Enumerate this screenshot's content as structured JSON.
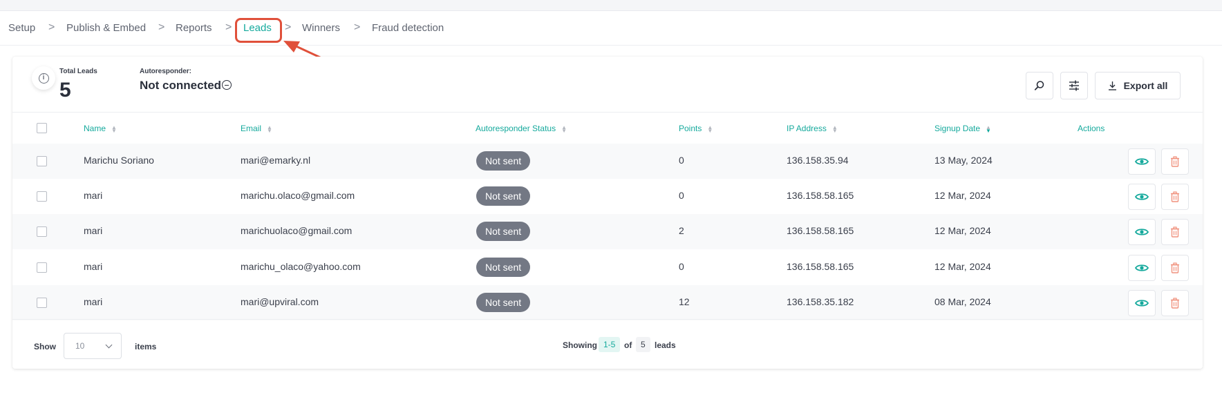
{
  "breadcrumb": {
    "items": [
      "Setup",
      "Publish & Embed",
      "Reports",
      "Leads",
      "Winners",
      "Fraud detection"
    ],
    "separator": ">",
    "active_index": 3
  },
  "stats": {
    "total_leads_label": "Total Leads",
    "total_leads_value": "5",
    "autoresponder_label": "Autoresponder:",
    "autoresponder_value": "Not connected"
  },
  "toolbar": {
    "search_icon": "search-icon",
    "filter_icon": "sliders-icon",
    "export_label": "Export all"
  },
  "table": {
    "columns": [
      "Name",
      "Email",
      "Autoresponder Status",
      "Points",
      "IP Address",
      "Signup Date",
      "Actions"
    ],
    "rows": [
      {
        "name": "Marichu Soriano",
        "email": "mari@emarky.nl",
        "status": "Not sent",
        "points": "0",
        "ip": "136.158.35.94",
        "date": "13 May, 2024"
      },
      {
        "name": "mari",
        "email": "marichu.olaco@gmail.com",
        "status": "Not sent",
        "points": "0",
        "ip": "136.158.58.165",
        "date": "12 Mar, 2024"
      },
      {
        "name": "mari",
        "email": "marichuolaco@gmail.com",
        "status": "Not sent",
        "points": "2",
        "ip": "136.158.58.165",
        "date": "12 Mar, 2024"
      },
      {
        "name": "mari",
        "email": "marichu_olaco@yahoo.com",
        "status": "Not sent",
        "points": "0",
        "ip": "136.158.58.165",
        "date": "12 Mar, 2024"
      },
      {
        "name": "mari",
        "email": "mari@upviral.com",
        "status": "Not sent",
        "points": "12",
        "ip": "136.158.35.182",
        "date": "08 Mar, 2024"
      }
    ]
  },
  "footer": {
    "show_label": "Show",
    "page_size": "10",
    "items_label": "items",
    "showing_label": "Showing",
    "range": "1-5",
    "of_label": "of",
    "total": "5",
    "leads_label": "leads"
  },
  "colors": {
    "accent": "#14a99c",
    "annotation": "#e0503a",
    "delete": "#f0917d",
    "badge": "#737884"
  }
}
